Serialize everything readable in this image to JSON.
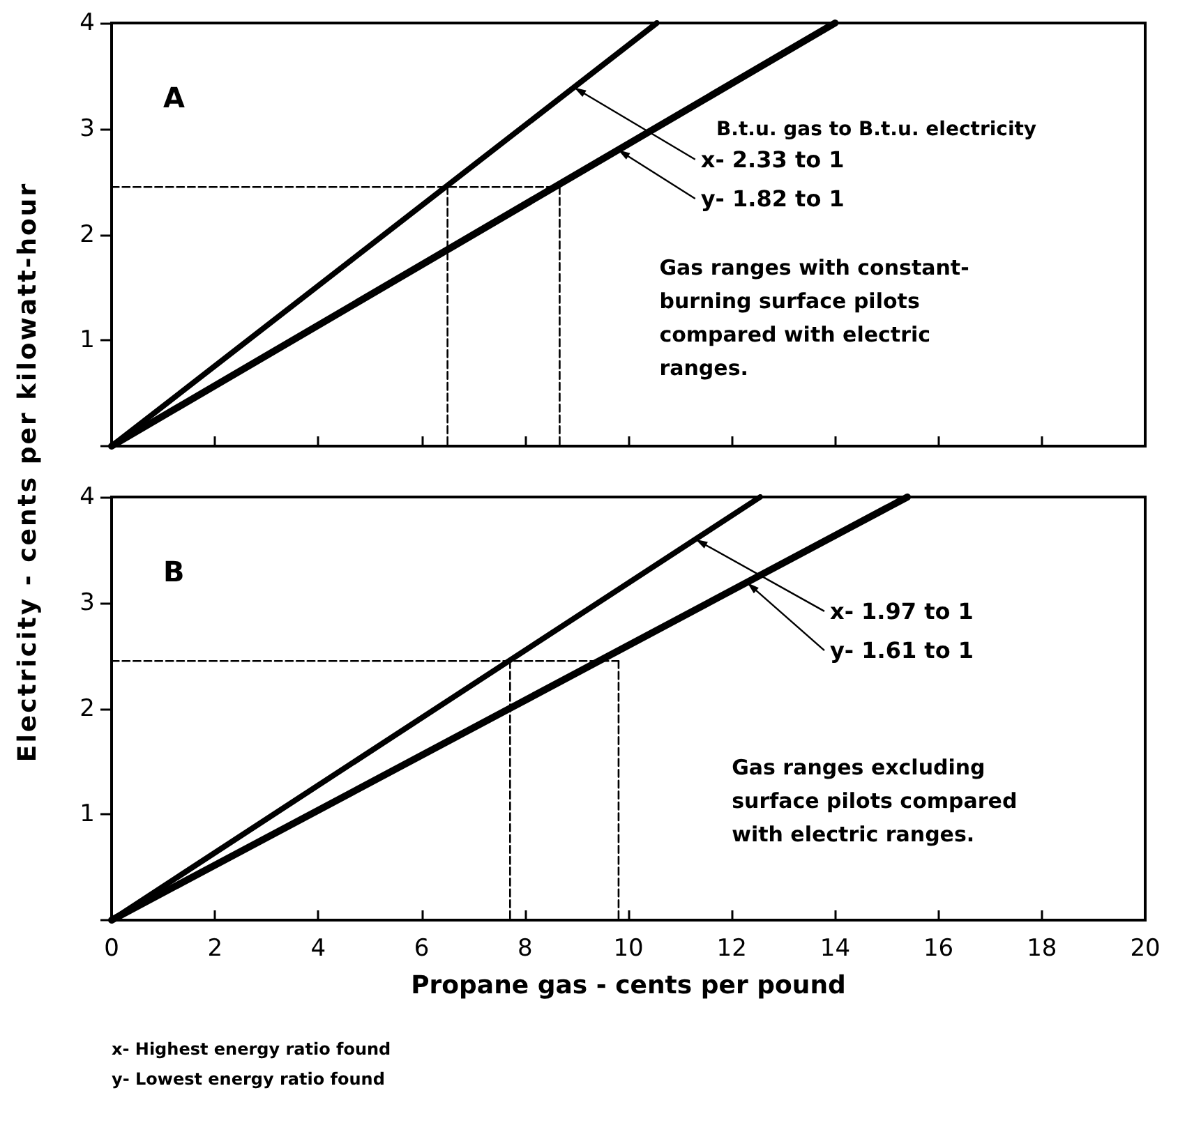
{
  "chart_data": [
    {
      "type": "line",
      "ylabel": "Electricity - cents per kilowatt-hour",
      "xlim": [
        0,
        20
      ],
      "xticks": [
        0,
        2,
        4,
        6,
        8,
        10,
        12,
        14,
        16,
        18,
        20
      ],
      "ylim": [
        0,
        4
      ],
      "yticks": [
        {
          "value": 0,
          "label": null
        },
        1,
        2,
        3,
        4
      ],
      "tick_labels": "y",
      "grid": false,
      "marker": "none",
      "series": [
        {
          "color": "#000000",
          "x": [
            0,
            10.55
          ],
          "values": [
            0,
            4
          ]
        },
        {
          "color": "#000000",
          "x": [
            0,
            14
          ],
          "values": [
            0,
            4
          ]
        },
        {
          "color": "#000000",
          "line_style": "dashed",
          "x": [
            0,
            8.67
          ],
          "values": [
            2.45,
            2.45
          ]
        },
        {
          "color": "#000000",
          "line_style": "dashed",
          "x": [
            6.5,
            6.5
          ],
          "values": [
            2.45,
            0
          ]
        },
        {
          "color": "#000000",
          "line_style": "dashed",
          "x": [
            8.67,
            8.67
          ],
          "values": [
            2.45,
            0
          ]
        }
      ],
      "annotations": [
        "A",
        "B.t.u. gas to B.t.u. electricity",
        {
          "text": "x- 2.33 to 1",
          "x": 8.95,
          "y": 3.39
        },
        {
          "text": "y- 1.82 to 1",
          "x": 9.8,
          "y": 2.8
        },
        "Gas ranges with constant-\nburning surface pilots\ncompared with electric\nranges."
      ]
    },
    {
      "type": "line",
      "xlabel": "Propane gas - cents per pound",
      "xlim": [
        0,
        20
      ],
      "xticks": [
        0,
        2,
        4,
        6,
        8,
        10,
        12,
        14,
        16,
        18,
        20
      ],
      "ylim": [
        0,
        4
      ],
      "yticks": [
        {
          "value": 0,
          "label": null
        },
        1,
        2,
        3,
        4
      ],
      "grid": false,
      "marker": "none",
      "series": [
        {
          "color": "#000000",
          "x": [
            0,
            12.55
          ],
          "values": [
            0,
            4
          ]
        },
        {
          "color": "#000000",
          "x": [
            0,
            15.4
          ],
          "values": [
            0,
            4
          ]
        },
        {
          "color": "#000000",
          "line_style": "dashed",
          "x": [
            0,
            9.81
          ],
          "values": [
            2.45,
            2.45
          ]
        },
        {
          "color": "#000000",
          "line_style": "dashed",
          "x": [
            7.71,
            7.71
          ],
          "values": [
            2.45,
            0
          ]
        },
        {
          "color": "#000000",
          "line_style": "dashed",
          "x": [
            9.81,
            9.81
          ],
          "values": [
            2.45,
            0
          ]
        }
      ],
      "annotations": [
        "B",
        {
          "text": "x- 1.97 to 1",
          "x": 11.3,
          "y": 3.6
        },
        {
          "text": "y- 1.61 to 1",
          "x": 12.3,
          "y": 3.19
        },
        "Gas ranges excluding\nsurface pilots compared\nwith electric ranges.",
        "x- Highest energy ratio found",
        "y- Lowest energy ratio found"
      ]
    }
  ]
}
